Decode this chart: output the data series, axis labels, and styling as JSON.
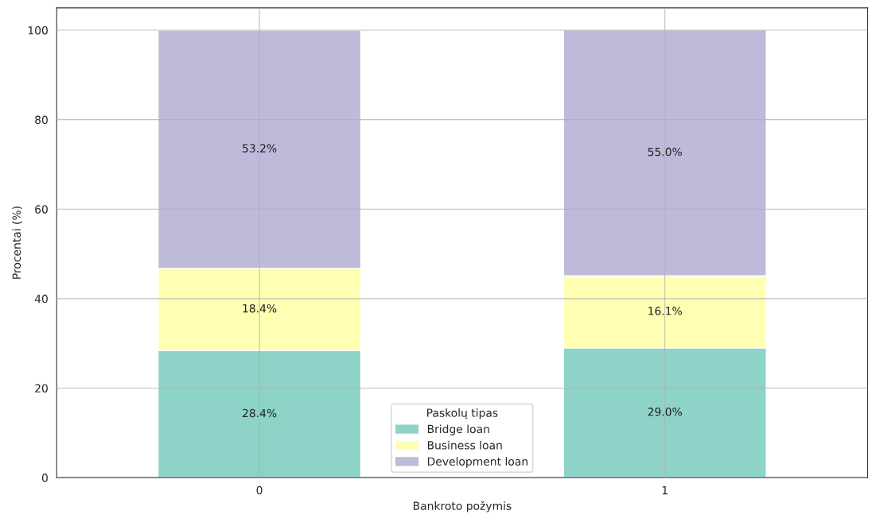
{
  "chart_data": {
    "type": "bar",
    "stacked": true,
    "xlabel": "Bankroto požymis",
    "ylabel": "Procentai (%)",
    "legend_title": "Paskolų tipas",
    "categories": [
      "0",
      "1"
    ],
    "series": [
      {
        "name": "Bridge loan",
        "color": "#8dd3c7",
        "values": [
          28.4,
          29.0
        ],
        "value_labels": [
          "28.4%",
          "29.0%"
        ]
      },
      {
        "name": "Business loan",
        "color": "#ffffb3",
        "values": [
          18.4,
          16.1
        ],
        "value_labels": [
          "18.4%",
          "16.1%"
        ]
      },
      {
        "name": "Development loan",
        "color": "#bebada",
        "values": [
          53.2,
          55.0
        ],
        "value_labels": [
          "53.2%",
          "55.0%"
        ]
      }
    ],
    "ylim": [
      0,
      105
    ],
    "yticks": [
      0,
      20,
      40,
      60,
      80,
      100
    ],
    "grid": true,
    "legend": "bottom"
  }
}
